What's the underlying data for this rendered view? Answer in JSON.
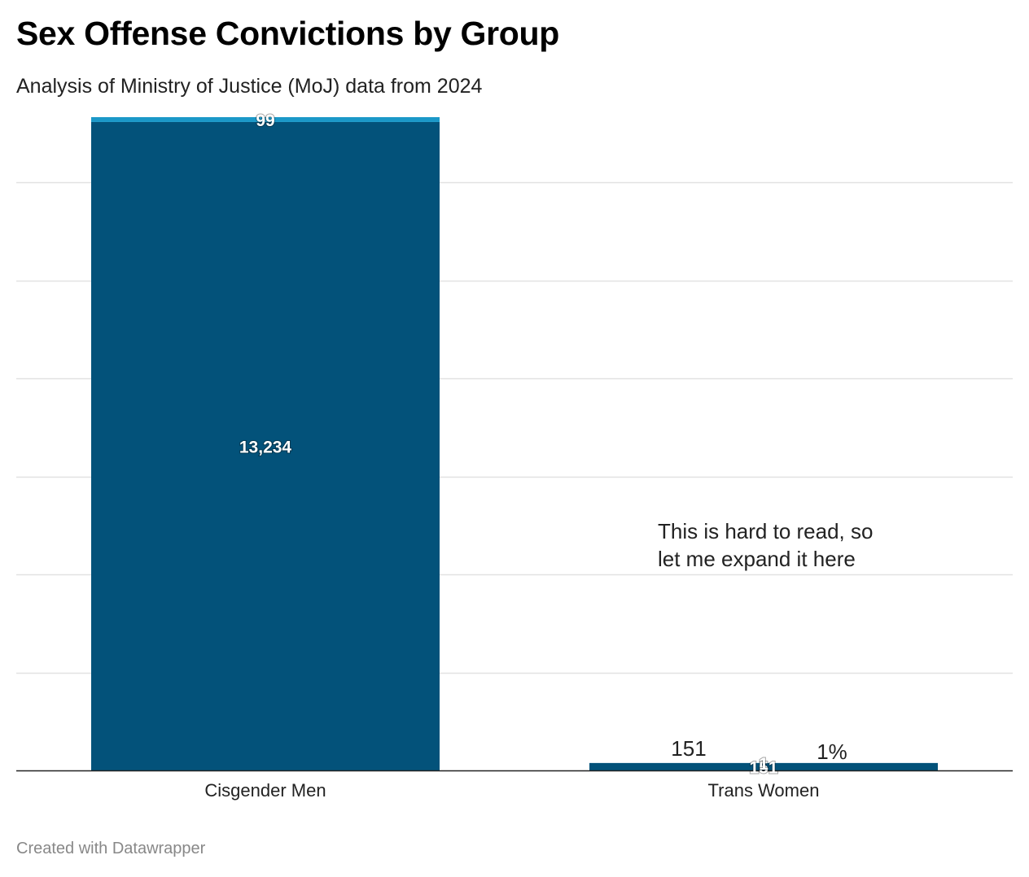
{
  "header": {
    "title": "Sex Offense Convictions by Group",
    "subtitle": "Analysis of Ministry of Justice (MoJ) data from 2024"
  },
  "footer": {
    "credit": "Created with Datawrapper"
  },
  "chart_data": {
    "type": "bar",
    "stacked": true,
    "categories": [
      "Cisgender Men",
      "Trans Women"
    ],
    "series": [
      {
        "values": [
          13234,
          151
        ],
        "labels": [
          "13,234",
          "151"
        ],
        "color": "#03527a"
      },
      {
        "values": [
          99,
          1
        ],
        "labels": [
          "99",
          "1"
        ],
        "color": "#1b98c8"
      }
    ],
    "ylim": [
      0,
      13333
    ],
    "grid": true,
    "gridlines": [
      2000,
      4000,
      6000,
      8000,
      10000,
      12000
    ],
    "annotations": [
      {
        "text": "151",
        "category": "Trans Women",
        "side": "left"
      },
      {
        "text": "1%",
        "category": "Trans Women",
        "side": "right"
      }
    ],
    "note": [
      "This is hard to read, so",
      "let me expand it here"
    ]
  }
}
